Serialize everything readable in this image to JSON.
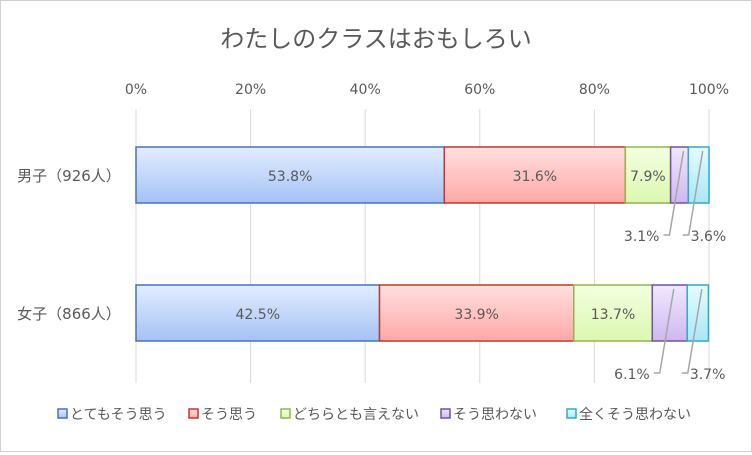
{
  "chart_data": {
    "type": "bar",
    "orientation": "horizontal",
    "stacked": "percent",
    "title": "わたしのクラスはおもしろい",
    "categories": [
      "男子（926人）",
      "女子（866人）"
    ],
    "xlim": [
      0,
      100
    ],
    "xticks": [
      "0%",
      "20%",
      "40%",
      "60%",
      "80%",
      "100%"
    ],
    "grid": true,
    "legend_position": "bottom",
    "series": [
      {
        "name": "とてもそう思う",
        "values": [
          53.8,
          42.5
        ],
        "labels": [
          "53.8%",
          "42.5%"
        ],
        "color": "#4472c4",
        "fill_top": "#e3edff",
        "fill_bottom": "#a4c2f4"
      },
      {
        "name": "そう思う",
        "values": [
          31.6,
          33.9
        ],
        "labels": [
          "31.6%",
          "33.9%"
        ],
        "color": "#c0392b",
        "fill_top": "#ffe0e0",
        "fill_bottom": "#ffa8a8"
      },
      {
        "name": "どちらとも言えない",
        "values": [
          7.9,
          13.7
        ],
        "labels": [
          "7.9%",
          "13.7%"
        ],
        "color": "#8db94b",
        "fill_top": "#f3ffe0",
        "fill_bottom": "#dcf7b0"
      },
      {
        "name": "そう思わない",
        "values": [
          3.1,
          6.1
        ],
        "labels": [
          "3.1%",
          "6.1%"
        ],
        "color": "#7151a0",
        "fill_top": "#f0e8ff",
        "fill_bottom": "#cdb8ee"
      },
      {
        "name": "全くそう思わない",
        "values": [
          3.6,
          3.7
        ],
        "labels": [
          "3.6%",
          "3.7%"
        ],
        "color": "#31a9c8",
        "fill_top": "#e6fbff",
        "fill_bottom": "#a8e8f6"
      }
    ]
  }
}
